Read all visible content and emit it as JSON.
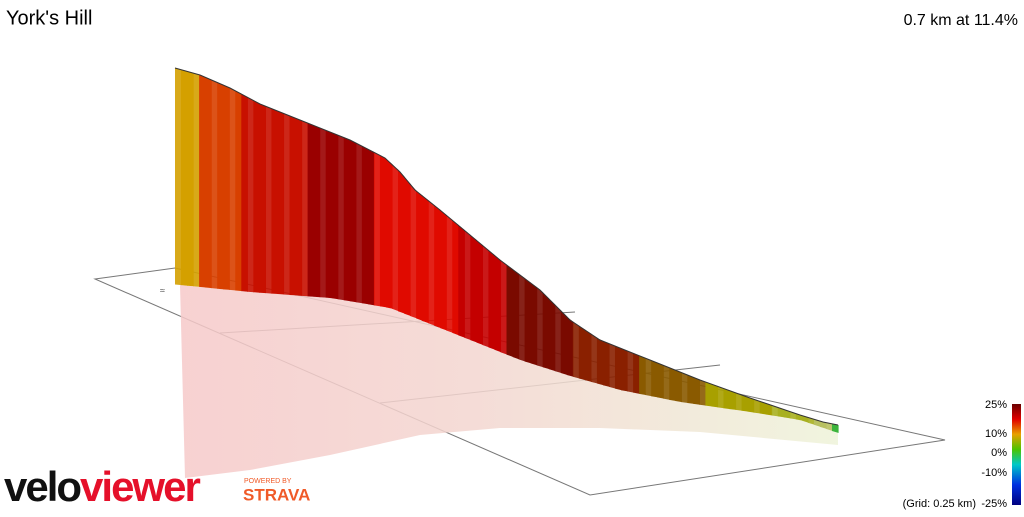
{
  "header": {
    "title": "York's Hill",
    "summary": "0.7 km at 11.4%"
  },
  "legend": {
    "labels": [
      "25%",
      "10%",
      "0%",
      "-10%",
      "-25%"
    ],
    "grid_note": "(Grid: 0.25 km)"
  },
  "branding": {
    "logo_first": "velo",
    "logo_second": "viewer",
    "powered_by": "POWERED BY",
    "partner": "STRAVA"
  }
}
